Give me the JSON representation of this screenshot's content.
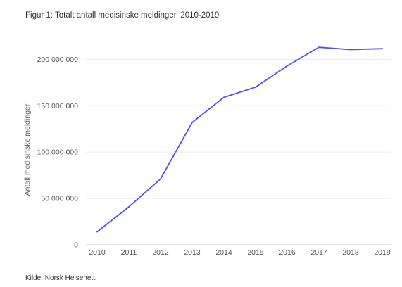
{
  "title": "Figur 1: Totalt antall medisinske meldinger. 2010-2019",
  "source": "Kilde: Norsk Helsenett.",
  "colors": {
    "line": "#5050f0",
    "grid": "#ebebeb",
    "baseline": "#c8c8c8"
  },
  "chart_data": {
    "type": "line",
    "title": "Figur 1: Totalt antall medisinske meldinger. 2010-2019",
    "ylabel": "Antall medisinske meldinger",
    "xlabel": "",
    "categories": [
      "2010",
      "2011",
      "2012",
      "2013",
      "2014",
      "2015",
      "2016",
      "2017",
      "2018",
      "2019"
    ],
    "series": [
      {
        "values": [
          14000000,
          41000000,
          71000000,
          132000000,
          159000000,
          170000000,
          193000000,
          213000000,
          210500000,
          211500000
        ]
      }
    ],
    "ylim": [
      0,
      220000000
    ],
    "yticks": [
      0,
      50000000,
      100000000,
      150000000,
      200000000
    ],
    "ytick_labels": [
      "0",
      "50 000 000",
      "100 000 000",
      "150 000 000",
      "200 000 000"
    ],
    "grid": true,
    "legend": "none"
  }
}
